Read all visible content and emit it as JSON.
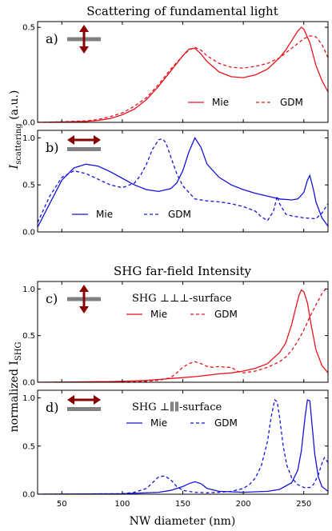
{
  "figure": {
    "section_titles": [
      "Scattering of fundamental light",
      "SHG far-field Intensity"
    ],
    "xlabel": "NW diameter (nm)",
    "ylabel_top": {
      "main": "I",
      "sub": "scattering",
      "unit": " (a.u.)"
    },
    "ylabel_bottom": {
      "main": "normalized I",
      "sub": "SHG"
    }
  },
  "colors": {
    "red": "#e8141e",
    "blue": "#1414dc",
    "icon_bar": "#808080",
    "icon_arrow": "#8b0000"
  },
  "chart_data": [
    {
      "type": "line",
      "panel_label": "a)",
      "polarization_icon": "vertical-arrow-icon",
      "xlim": [
        30,
        270
      ],
      "ylim": [
        0,
        0.53
      ],
      "xticks": [
        50,
        100,
        150,
        200,
        250
      ],
      "yticks": [
        0.0,
        0.5
      ],
      "ytick_labels": [
        "0.0",
        "0.5"
      ],
      "legend": [
        "Mie",
        "GDM"
      ],
      "series": [
        {
          "name": "Mie",
          "style": "solid",
          "color": "red",
          "x": [
            30,
            50,
            70,
            80,
            90,
            100,
            110,
            120,
            130,
            140,
            150,
            155,
            160,
            165,
            170,
            180,
            190,
            200,
            210,
            220,
            230,
            235,
            240,
            245,
            248,
            250,
            255,
            260,
            265,
            270
          ],
          "y": [
            0.0,
            0.002,
            0.005,
            0.01,
            0.02,
            0.04,
            0.07,
            0.12,
            0.19,
            0.27,
            0.35,
            0.385,
            0.39,
            0.36,
            0.32,
            0.265,
            0.24,
            0.235,
            0.25,
            0.28,
            0.34,
            0.38,
            0.43,
            0.48,
            0.5,
            0.49,
            0.42,
            0.3,
            0.22,
            0.16
          ]
        },
        {
          "name": "GDM",
          "style": "dashed",
          "color": "red",
          "x": [
            30,
            50,
            70,
            80,
            90,
            100,
            110,
            120,
            130,
            140,
            150,
            155,
            160,
            165,
            170,
            180,
            190,
            200,
            210,
            220,
            230,
            240,
            250,
            255,
            260,
            265,
            270
          ],
          "y": [
            0.0,
            0.003,
            0.008,
            0.015,
            0.03,
            0.05,
            0.085,
            0.13,
            0.2,
            0.28,
            0.35,
            0.38,
            0.395,
            0.38,
            0.35,
            0.31,
            0.29,
            0.285,
            0.295,
            0.31,
            0.34,
            0.39,
            0.44,
            0.455,
            0.45,
            0.41,
            0.34
          ]
        }
      ]
    },
    {
      "type": "line",
      "panel_label": "b)",
      "polarization_icon": "horizontal-arrow-icon",
      "xlim": [
        30,
        270
      ],
      "ylim": [
        0,
        1.08
      ],
      "xticks": [
        50,
        100,
        150,
        200,
        250
      ],
      "yticks": [
        0.0,
        0.5,
        1.0
      ],
      "ytick_labels": [
        "0.0",
        "0.5",
        "1.0"
      ],
      "legend": [
        "Mie",
        "GDM"
      ],
      "series": [
        {
          "name": "Mie",
          "style": "solid",
          "color": "blue",
          "x": [
            30,
            40,
            50,
            60,
            70,
            80,
            90,
            100,
            110,
            120,
            130,
            140,
            145,
            150,
            155,
            160,
            165,
            170,
            180,
            190,
            200,
            210,
            220,
            230,
            240,
            245,
            250,
            253,
            255,
            258,
            260,
            265,
            270
          ],
          "y": [
            0.05,
            0.3,
            0.55,
            0.68,
            0.72,
            0.7,
            0.64,
            0.57,
            0.5,
            0.45,
            0.43,
            0.46,
            0.52,
            0.65,
            0.85,
            1.0,
            0.9,
            0.72,
            0.58,
            0.5,
            0.45,
            0.41,
            0.38,
            0.35,
            0.34,
            0.35,
            0.42,
            0.55,
            0.6,
            0.45,
            0.32,
            0.15,
            0.06
          ]
        },
        {
          "name": "GDM",
          "style": "dashed",
          "color": "blue",
          "x": [
            30,
            40,
            50,
            60,
            70,
            80,
            90,
            100,
            110,
            115,
            120,
            125,
            130,
            133,
            136,
            140,
            145,
            150,
            160,
            170,
            180,
            190,
            200,
            210,
            215,
            220,
            225,
            228,
            230,
            235,
            240,
            250,
            260,
            265,
            270
          ],
          "y": [
            0.1,
            0.38,
            0.58,
            0.65,
            0.62,
            0.56,
            0.5,
            0.47,
            0.52,
            0.6,
            0.72,
            0.88,
            0.98,
            0.99,
            0.95,
            0.8,
            0.62,
            0.49,
            0.35,
            0.33,
            0.32,
            0.3,
            0.27,
            0.22,
            0.16,
            0.12,
            0.22,
            0.38,
            0.3,
            0.19,
            0.17,
            0.15,
            0.14,
            0.2,
            0.3
          ]
        }
      ]
    },
    {
      "type": "line",
      "panel_label": "c)",
      "polarization_icon": "vertical-arrow-icon",
      "annotation": "SHG ⊥⊥⊥-surface",
      "xlim": [
        30,
        270
      ],
      "ylim": [
        0,
        1.08
      ],
      "xticks": [
        50,
        100,
        150,
        200,
        250
      ],
      "yticks": [
        0.0,
        0.5,
        1.0
      ],
      "ytick_labels": [
        "0.0",
        "0.5",
        "1.0"
      ],
      "legend": [
        "Mie",
        "GDM"
      ],
      "series": [
        {
          "name": "Mie",
          "style": "solid",
          "color": "red",
          "x": [
            30,
            60,
            90,
            110,
            120,
            130,
            140,
            150,
            160,
            170,
            180,
            190,
            200,
            210,
            220,
            230,
            235,
            240,
            243,
            246,
            248,
            250,
            253,
            256,
            260,
            265,
            270
          ],
          "y": [
            0,
            0.003,
            0.008,
            0.015,
            0.02,
            0.03,
            0.04,
            0.05,
            0.06,
            0.075,
            0.09,
            0.1,
            0.12,
            0.15,
            0.2,
            0.32,
            0.42,
            0.62,
            0.78,
            0.93,
            0.99,
            0.97,
            0.85,
            0.62,
            0.35,
            0.18,
            0.1
          ]
        },
        {
          "name": "GDM",
          "style": "dashed",
          "color": "red",
          "x": [
            30,
            100,
            120,
            130,
            140,
            145,
            150,
            155,
            160,
            165,
            170,
            175,
            180,
            185,
            190,
            195,
            200,
            210,
            220,
            230,
            235,
            240,
            245,
            250,
            255,
            260,
            265,
            268
          ],
          "y": [
            0,
            0.002,
            0.01,
            0.02,
            0.05,
            0.1,
            0.16,
            0.2,
            0.22,
            0.2,
            0.17,
            0.16,
            0.17,
            0.16,
            0.16,
            0.12,
            0.1,
            0.12,
            0.16,
            0.22,
            0.27,
            0.34,
            0.44,
            0.56,
            0.7,
            0.83,
            0.95,
            1.0
          ]
        }
      ]
    },
    {
      "type": "line",
      "panel_label": "d)",
      "polarization_icon": "horizontal-arrow-icon",
      "annotation": "SHG ⊥∥∥-surface",
      "xlim": [
        30,
        270
      ],
      "ylim": [
        0,
        1.08
      ],
      "xticks": [
        50,
        100,
        150,
        200,
        250
      ],
      "yticks": [
        0.0,
        0.5,
        1.0
      ],
      "ytick_labels": [
        "0.0",
        "0.5",
        "1.0"
      ],
      "legend": [
        "Mie",
        "GDM"
      ],
      "series": [
        {
          "name": "Mie",
          "style": "solid",
          "color": "blue",
          "x": [
            30,
            100,
            130,
            140,
            150,
            155,
            160,
            165,
            170,
            180,
            200,
            220,
            230,
            240,
            245,
            248,
            251,
            253,
            255,
            257,
            259,
            262,
            265,
            270
          ],
          "y": [
            0,
            0.005,
            0.02,
            0.04,
            0.08,
            0.11,
            0.13,
            0.11,
            0.06,
            0.03,
            0.02,
            0.03,
            0.05,
            0.12,
            0.25,
            0.45,
            0.8,
            0.98,
            0.97,
            0.7,
            0.42,
            0.18,
            0.08,
            0.03
          ]
        },
        {
          "name": "GDM",
          "style": "dashed",
          "color": "blue",
          "x": [
            30,
            100,
            110,
            120,
            125,
            130,
            135,
            140,
            145,
            150,
            160,
            170,
            180,
            190,
            200,
            205,
            210,
            215,
            220,
            223,
            226,
            228,
            230,
            233,
            236,
            240,
            245,
            250,
            255,
            258,
            262,
            265,
            267,
            270
          ],
          "y": [
            0,
            0.005,
            0.02,
            0.06,
            0.12,
            0.18,
            0.19,
            0.15,
            0.08,
            0.04,
            0.02,
            0.015,
            0.02,
            0.03,
            0.06,
            0.1,
            0.17,
            0.3,
            0.55,
            0.8,
            0.98,
            0.96,
            0.8,
            0.5,
            0.3,
            0.17,
            0.1,
            0.07,
            0.07,
            0.1,
            0.2,
            0.32,
            0.38,
            0.33
          ]
        }
      ]
    }
  ]
}
